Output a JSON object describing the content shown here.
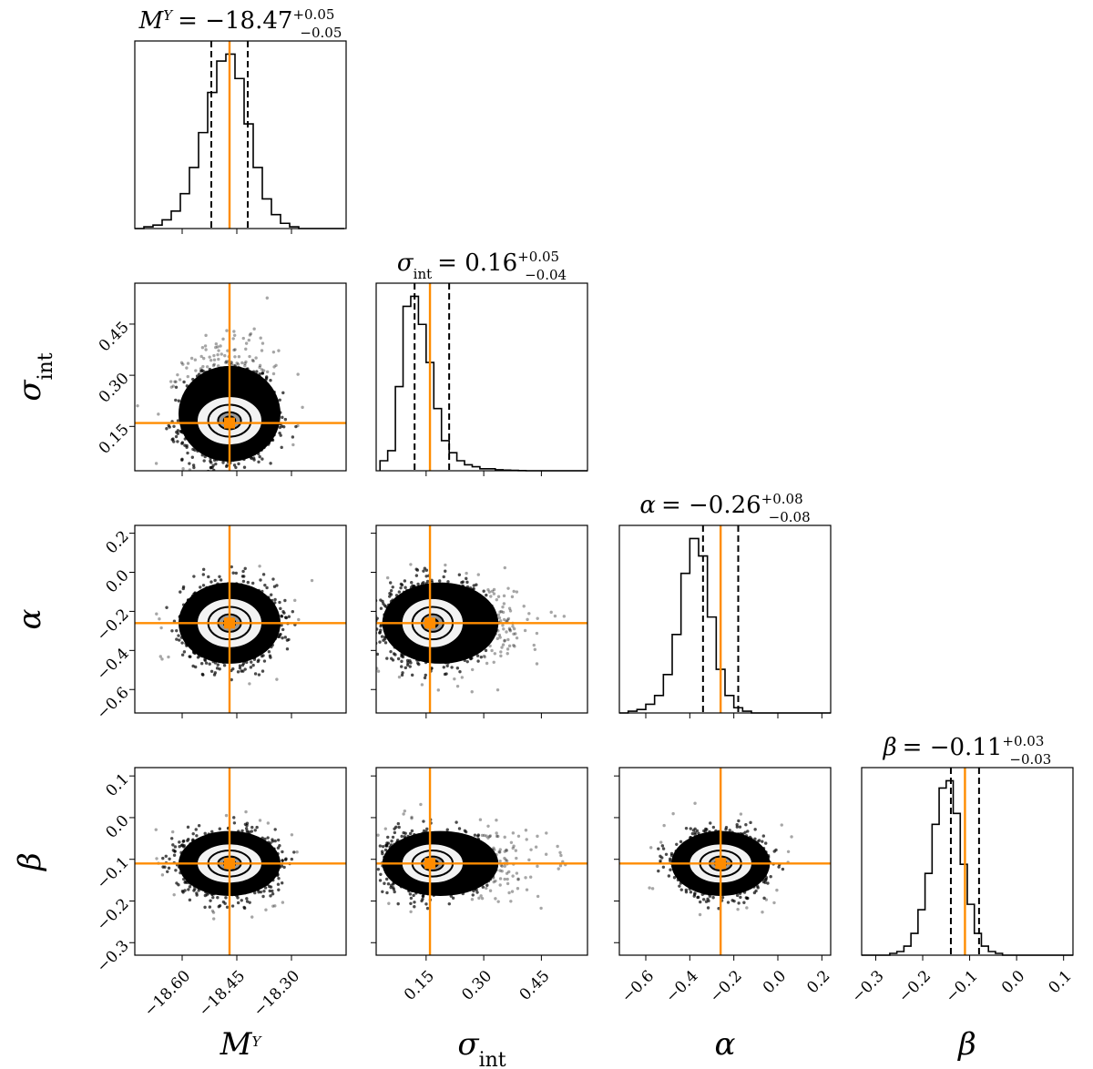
{
  "chart_data": {
    "type": "corner",
    "parameters": [
      {
        "symbol": "M",
        "sup": "Y",
        "sub": "",
        "median": "-18.47",
        "err_plus": "+0.05",
        "err_minus": "-0.05",
        "truth": -18.47,
        "q16": -18.52,
        "q84": -18.42,
        "range": [
          -18.73,
          -18.15
        ],
        "ticks": [
          -18.6,
          -18.45,
          -18.3
        ],
        "tick_labels": [
          "−18.60",
          "−18.45",
          "−18.30"
        ],
        "hist": {
          "start": -18.73,
          "bin_width": 0.025,
          "counts": [
            0.0,
            0.01,
            0.02,
            0.05,
            0.1,
            0.2,
            0.35,
            0.55,
            0.78,
            0.96,
            1.0,
            0.86,
            0.6,
            0.35,
            0.17,
            0.08,
            0.03,
            0.01,
            0.0,
            0.0,
            0.0,
            0.0,
            0.0
          ]
        }
      },
      {
        "symbol": "σ",
        "sup": "",
        "sub": "int",
        "median": "0.16",
        "err_plus": "+0.05",
        "err_minus": "-0.04",
        "truth": 0.16,
        "q16": 0.12,
        "q84": 0.21,
        "range": [
          0.02,
          0.57
        ],
        "ticks": [
          0.15,
          0.3,
          0.45
        ],
        "tick_labels": [
          "0.15",
          "0.30",
          "0.45"
        ],
        "hist": {
          "start": 0.03,
          "bin_width": 0.02,
          "counts": [
            0.05,
            0.1,
            0.42,
            0.82,
            0.87,
            0.73,
            0.54,
            0.31,
            0.15,
            0.09,
            0.05,
            0.03,
            0.02,
            0.01,
            0.01,
            0.005,
            0.003,
            0.002,
            0.001,
            0.0,
            0.0,
            0.0,
            0.0,
            0.0,
            0.0,
            0.0,
            0.0
          ]
        }
      },
      {
        "symbol": "α",
        "sup": "",
        "sub": "",
        "median": "-0.26",
        "err_plus": "+0.08",
        "err_minus": "-0.08",
        "truth": -0.26,
        "q16": -0.34,
        "q84": -0.18,
        "range": [
          -0.72,
          0.24
        ],
        "ticks": [
          -0.6,
          -0.4,
          -0.2,
          0.0,
          0.2
        ],
        "tick_labels": [
          "−0.6",
          "−0.4",
          "−0.2",
          "0.0",
          "0.2"
        ],
        "hist": {
          "start": -0.72,
          "bin_width": 0.04,
          "counts": [
            0.0,
            0.01,
            0.02,
            0.05,
            0.1,
            0.22,
            0.45,
            0.8,
            1.0,
            0.9,
            0.55,
            0.25,
            0.1,
            0.03,
            0.01,
            0.0,
            0.0,
            0.0,
            0.0,
            0.0,
            0.0,
            0.0,
            0.0,
            0.0
          ]
        }
      },
      {
        "symbol": "β",
        "sup": "",
        "sub": "",
        "median": "-0.11",
        "err_plus": "+0.03",
        "err_minus": "-0.03",
        "truth": -0.11,
        "q16": -0.14,
        "q84": -0.08,
        "range": [
          -0.33,
          0.12
        ],
        "ticks": [
          -0.3,
          -0.2,
          -0.1,
          0.0,
          0.1
        ],
        "tick_labels": [
          "−0.3",
          "−0.2",
          "−0.1",
          "0.0",
          "0.1"
        ],
        "hist": {
          "start": -0.33,
          "bin_width": 0.015,
          "counts": [
            0.0,
            0.0,
            0.0,
            0.0,
            0.01,
            0.02,
            0.05,
            0.12,
            0.25,
            0.45,
            0.72,
            0.92,
            0.96,
            0.78,
            0.5,
            0.28,
            0.12,
            0.05,
            0.02,
            0.01,
            0.0,
            0.0,
            0.0,
            0.0,
            0.0,
            0.0,
            0.0,
            0.0,
            0.0,
            0.0
          ]
        }
      }
    ],
    "truth_color": "#ff8c00",
    "hist_color": "#000000",
    "grid": false,
    "legend": "none"
  }
}
